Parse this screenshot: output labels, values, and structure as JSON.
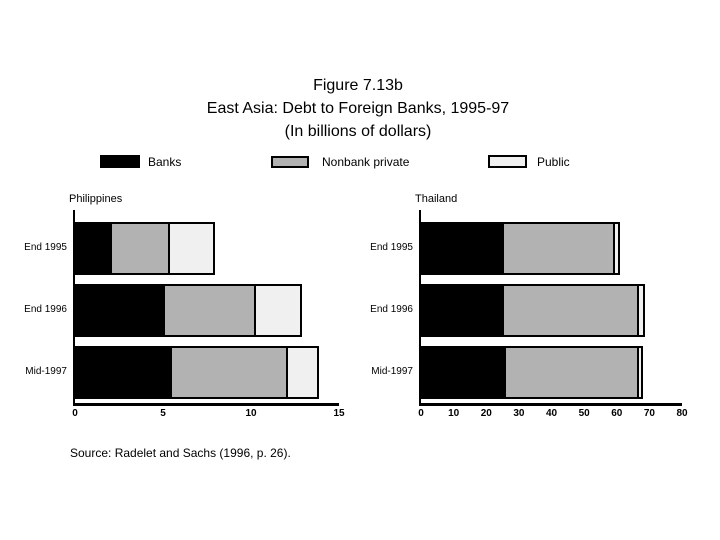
{
  "slide": {
    "title_lines": [
      "Figure 7.13b",
      "East Asia: Debt to Foreign Banks, 1995-97",
      "(In billions of dollars)"
    ],
    "source": "Source: Radelet and Sachs (1996, p. 26)."
  },
  "legend": {
    "items": [
      {
        "label": "Banks",
        "color": "#000000"
      },
      {
        "label": "Nonbank private",
        "color": "#b2b2b2"
      },
      {
        "label": "Public",
        "color": "#f0f0f0"
      }
    ]
  },
  "chart_data": [
    {
      "type": "bar",
      "orientation": "horizontal",
      "stacked": true,
      "title": "Philippines",
      "categories": [
        "End 1995",
        "End 1996",
        "Mid-1997"
      ],
      "series": [
        {
          "name": "Banks",
          "color": "#000000",
          "values": [
            2.1,
            5.1,
            5.5
          ]
        },
        {
          "name": "Nonbank private",
          "color": "#b2b2b2",
          "values": [
            3.4,
            5.3,
            6.7
          ]
        },
        {
          "name": "Public",
          "color": "#f0f0f0",
          "values": [
            2.7,
            2.7,
            1.9
          ]
        }
      ],
      "totals": [
        8.2,
        13.1,
        14.1
      ],
      "xlim": [
        0,
        15
      ],
      "xticks": [
        0,
        5,
        10,
        15
      ],
      "grid": false,
      "unit": "billions of dollars"
    },
    {
      "type": "bar",
      "orientation": "horizontal",
      "stacked": true,
      "title": "Thailand",
      "categories": [
        "End 1995",
        "End 1996",
        "Mid-1997"
      ],
      "series": [
        {
          "name": "Banks",
          "color": "#000000",
          "values": [
            25.5,
            25.5,
            26.0
          ]
        },
        {
          "name": "Nonbank private",
          "color": "#b2b2b2",
          "values": [
            34.5,
            42.0,
            41.3
          ]
        },
        {
          "name": "Public",
          "color": "#f0f0f0",
          "values": [
            2.3,
            2.5,
            2.0
          ]
        }
      ],
      "totals": [
        62.3,
        70.0,
        69.3
      ],
      "xlim": [
        0,
        80
      ],
      "xticks": [
        0,
        10,
        20,
        30,
        40,
        50,
        60,
        70,
        80
      ],
      "grid": false,
      "unit": "billions of dollars"
    }
  ]
}
